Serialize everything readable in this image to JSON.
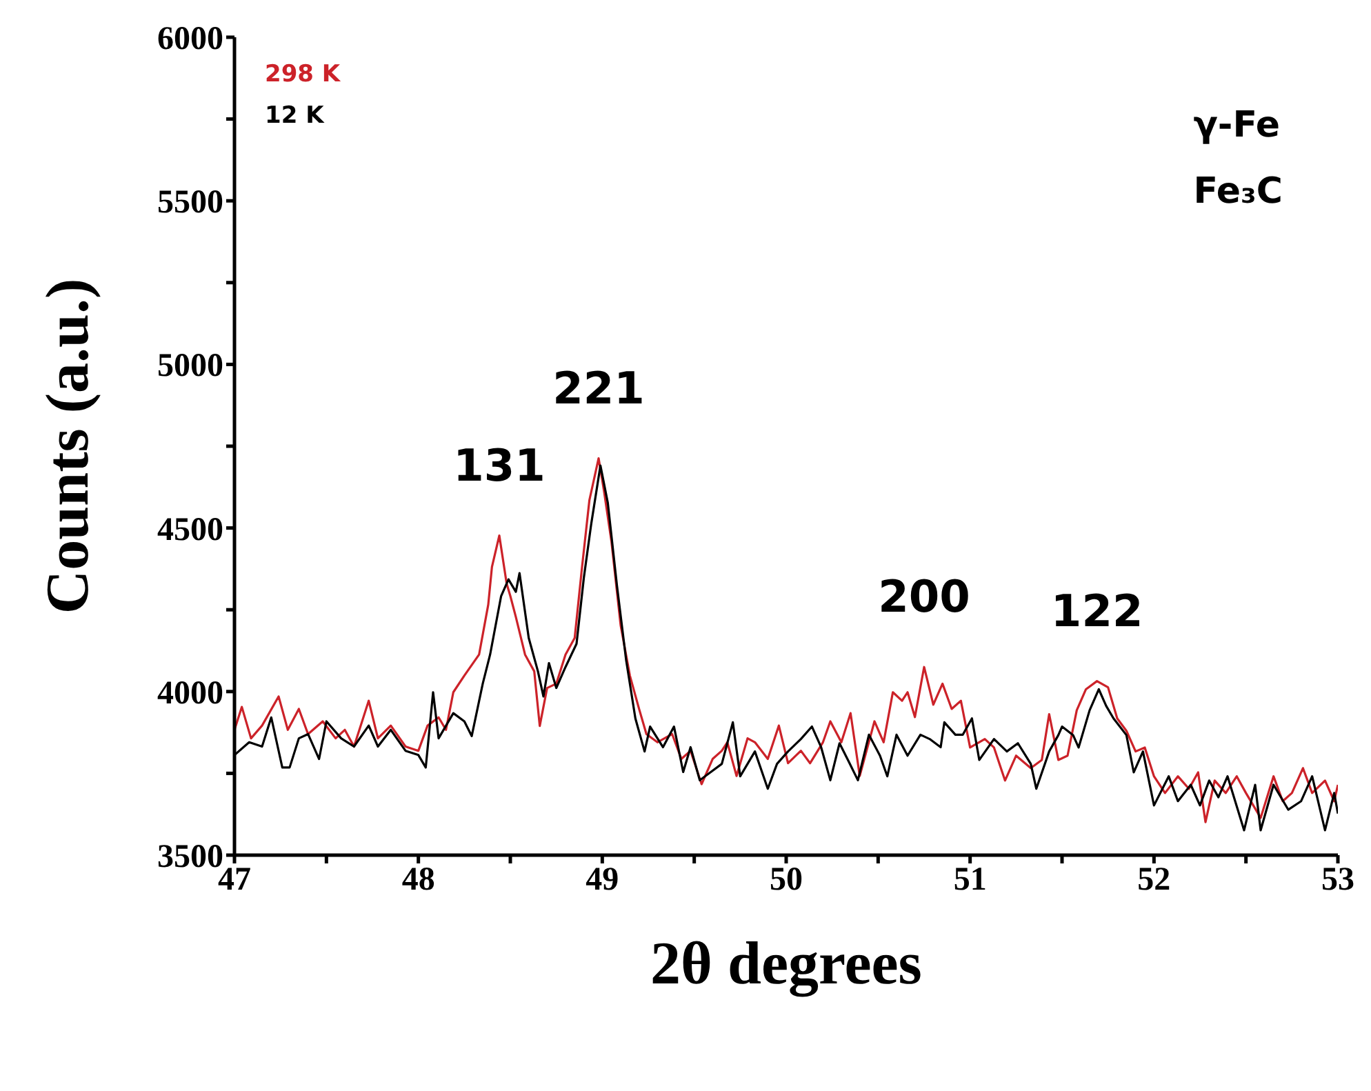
{
  "chart_data": {
    "type": "line",
    "xlabel": "2θ degrees",
    "ylabel": "Counts (a.u.)",
    "xlim": [
      47,
      53
    ],
    "ylim": [
      3500,
      6000
    ],
    "xticks": [
      47,
      {
        "value": 47.5,
        "label": null
      },
      48,
      {
        "value": 48.5,
        "label": null
      },
      49,
      {
        "value": 49.5,
        "label": null
      },
      50,
      {
        "value": 50.5,
        "label": null
      },
      51,
      {
        "value": 51.5,
        "label": null
      },
      52,
      {
        "value": 52.5,
        "label": null
      },
      53
    ],
    "yticks": [
      3500,
      {
        "value": 3750,
        "label": null
      },
      4000,
      {
        "value": 4250,
        "label": null
      },
      4500,
      {
        "value": 4750,
        "label": null
      },
      5000,
      {
        "value": 5250,
        "label": null
      },
      5500,
      {
        "value": 5750,
        "label": null
      },
      6000
    ],
    "grid": false,
    "legend": "top left",
    "marker": "none",
    "line_style": "solid",
    "series": [
      {
        "name": "298 K",
        "color": "#cc2229",
        "x": [
          47.0,
          47.04,
          47.09,
          47.15,
          47.24,
          47.29,
          47.35,
          47.4,
          47.48,
          47.55,
          47.6,
          47.65,
          47.73,
          47.78,
          47.85,
          47.93,
          48.0,
          48.05,
          48.11,
          48.15,
          48.19,
          48.25,
          48.33,
          48.38,
          48.4,
          48.44,
          48.48,
          48.5,
          48.53,
          48.58,
          48.63,
          48.66,
          48.7,
          48.75,
          48.8,
          48.85,
          48.89,
          48.93,
          48.98,
          49.01,
          49.05,
          49.1,
          49.15,
          49.2,
          49.24,
          49.3,
          49.38,
          49.43,
          49.48,
          49.54,
          49.6,
          49.65,
          49.68,
          49.73,
          49.79,
          49.83,
          49.9,
          49.96,
          50.01,
          50.08,
          50.13,
          50.2,
          50.24,
          50.3,
          50.35,
          50.4,
          50.48,
          50.53,
          50.58,
          50.63,
          50.66,
          50.7,
          50.75,
          50.8,
          50.85,
          50.9,
          50.95,
          51.0,
          51.08,
          51.13,
          51.19,
          51.25,
          51.33,
          51.39,
          51.43,
          51.48,
          51.53,
          51.58,
          51.63,
          51.69,
          51.75,
          51.8,
          51.85,
          51.9,
          51.95,
          52.0,
          52.06,
          52.13,
          52.19,
          52.24,
          52.28,
          52.33,
          52.39,
          52.45,
          52.5,
          52.58,
          52.65,
          52.7,
          52.75,
          52.81,
          52.86,
          52.93,
          52.98,
          53.0
        ],
        "values": [
          3883,
          3953,
          3857,
          3896,
          3985,
          3883,
          3947,
          3870,
          3909,
          3857,
          3883,
          3832,
          3972,
          3857,
          3896,
          3832,
          3819,
          3896,
          3921,
          3883,
          3998,
          4049,
          4113,
          4266,
          4381,
          4477,
          4330,
          4292,
          4228,
          4113,
          4062,
          3895,
          4011,
          4024,
          4113,
          4164,
          4381,
          4585,
          4713,
          4611,
          4458,
          4202,
          4049,
          3947,
          3870,
          3845,
          3870,
          3794,
          3819,
          3717,
          3794,
          3819,
          3845,
          3742,
          3857,
          3845,
          3794,
          3896,
          3781,
          3819,
          3781,
          3845,
          3909,
          3845,
          3934,
          3742,
          3909,
          3845,
          3998,
          3972,
          3998,
          3922,
          4075,
          3960,
          4024,
          3947,
          3972,
          3829,
          3855,
          3829,
          3728,
          3804,
          3766,
          3791,
          3931,
          3791,
          3804,
          3943,
          4007,
          4032,
          4013,
          3918,
          3880,
          3817,
          3829,
          3741,
          3690,
          3741,
          3703,
          3753,
          3601,
          3728,
          3690,
          3741,
          3690,
          3614,
          3741,
          3665,
          3690,
          3766,
          3690,
          3728,
          3665,
          3715
        ]
      },
      {
        "name": "12 K",
        "color": "#000000",
        "x": [
          47.0,
          47.08,
          47.15,
          47.2,
          47.26,
          47.3,
          47.35,
          47.4,
          47.46,
          47.5,
          47.58,
          47.65,
          47.73,
          47.78,
          47.85,
          47.93,
          48.0,
          48.04,
          48.08,
          48.11,
          48.19,
          48.25,
          48.29,
          48.35,
          48.39,
          48.45,
          48.49,
          48.53,
          48.55,
          48.6,
          48.65,
          48.68,
          48.71,
          48.75,
          48.8,
          48.86,
          48.9,
          48.94,
          48.99,
          49.03,
          49.08,
          49.13,
          49.18,
          49.23,
          49.26,
          49.33,
          49.39,
          49.44,
          49.48,
          49.53,
          49.59,
          49.65,
          49.71,
          49.75,
          49.83,
          49.9,
          49.95,
          50.01,
          50.08,
          50.14,
          50.19,
          50.24,
          50.29,
          50.34,
          50.39,
          50.45,
          50.51,
          50.55,
          50.6,
          50.66,
          50.73,
          50.78,
          50.84,
          50.86,
          50.92,
          50.96,
          51.01,
          51.05,
          51.13,
          51.2,
          51.26,
          51.33,
          51.36,
          51.43,
          51.48,
          51.5,
          51.56,
          51.59,
          51.65,
          51.7,
          51.74,
          51.78,
          51.85,
          51.89,
          51.94,
          52.0,
          52.08,
          52.13,
          52.2,
          52.25,
          52.3,
          52.35,
          52.4,
          52.49,
          52.55,
          52.58,
          52.65,
          52.73,
          52.8,
          52.86,
          52.93,
          52.98,
          53.0
        ],
        "values": [
          3806,
          3845,
          3832,
          3921,
          3768,
          3768,
          3857,
          3870,
          3794,
          3909,
          3857,
          3832,
          3896,
          3832,
          3883,
          3819,
          3806,
          3768,
          3998,
          3857,
          3934,
          3909,
          3864,
          4024,
          4113,
          4292,
          4343,
          4305,
          4362,
          4164,
          4062,
          3985,
          4087,
          4011,
          4075,
          4146,
          4349,
          4513,
          4691,
          4577,
          4323,
          4095,
          3918,
          3817,
          3893,
          3830,
          3893,
          3754,
          3830,
          3729,
          3754,
          3779,
          3906,
          3741,
          3817,
          3703,
          3779,
          3817,
          3855,
          3893,
          3830,
          3729,
          3842,
          3786,
          3729,
          3868,
          3804,
          3741,
          3868,
          3804,
          3868,
          3855,
          3830,
          3906,
          3868,
          3868,
          3918,
          3791,
          3855,
          3817,
          3842,
          3779,
          3703,
          3817,
          3867,
          3893,
          3867,
          3829,
          3943,
          4007,
          3956,
          3918,
          3867,
          3753,
          3817,
          3652,
          3741,
          3665,
          3715,
          3652,
          3728,
          3677,
          3741,
          3576,
          3715,
          3576,
          3715,
          3639,
          3665,
          3741,
          3576,
          3690,
          3627
        ]
      }
    ],
    "annotations": [
      {
        "text": "131",
        "x": 48.44,
        "y": 4477
      },
      {
        "text": "221",
        "x": 48.98,
        "y": 4713
      },
      {
        "text": "200",
        "x": 50.75,
        "y": 4075
      },
      {
        "text": "122",
        "x": 51.69,
        "y": 4032
      },
      "γ-Fe",
      "Fe₃C"
    ]
  }
}
